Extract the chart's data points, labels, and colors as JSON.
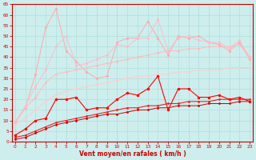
{
  "xlabel": "Vent moyen/en rafales ( km/h )",
  "x": [
    0,
    1,
    2,
    3,
    4,
    5,
    6,
    7,
    8,
    9,
    10,
    11,
    12,
    13,
    14,
    15,
    16,
    17,
    18,
    19,
    20,
    21,
    22,
    23
  ],
  "line_spiky_light": [
    9,
    16,
    32,
    54,
    63,
    43,
    38,
    33,
    30,
    31,
    47,
    49,
    49,
    57,
    49,
    41,
    50,
    49,
    50,
    47,
    46,
    43,
    47,
    39
  ],
  "line_mid_light": [
    9,
    17,
    26,
    34,
    45,
    50,
    36,
    37,
    39,
    41,
    46,
    45,
    49,
    49,
    58,
    43,
    49,
    50,
    48,
    47,
    47,
    44,
    48,
    40
  ],
  "line_diag_light": [
    9,
    16,
    21,
    28,
    32,
    33,
    34,
    35,
    36,
    37,
    38,
    39,
    40,
    41,
    42,
    43,
    43,
    44,
    44,
    45,
    45,
    45,
    46,
    40
  ],
  "line_diag_pale": [
    8,
    11,
    15,
    19,
    22,
    24,
    25,
    26,
    27,
    28,
    29,
    30,
    31,
    31,
    32,
    32,
    33,
    33,
    34,
    34,
    34,
    35,
    35,
    35
  ],
  "line_red_jagged": [
    3,
    6,
    10,
    11,
    20,
    20,
    21,
    15,
    16,
    16,
    20,
    23,
    22,
    25,
    31,
    15,
    25,
    25,
    21,
    21,
    22,
    20,
    21,
    19
  ],
  "line_red_diag1": [
    2,
    3,
    5,
    7,
    9,
    10,
    11,
    12,
    13,
    14,
    15,
    16,
    16,
    17,
    17,
    18,
    18,
    19,
    19,
    19,
    20,
    20,
    20,
    20
  ],
  "line_red_diag2": [
    1,
    2,
    4,
    6,
    8,
    9,
    10,
    11,
    12,
    13,
    13,
    14,
    15,
    15,
    16,
    16,
    17,
    17,
    17,
    18,
    18,
    18,
    19,
    19
  ],
  "color_spiky_light": "#ffaaaa",
  "color_mid_light": "#ffbbcc",
  "color_diag_light": "#ffbbcc",
  "color_diag_pale": "#ffcccc",
  "color_red_jagged": "#ff0000",
  "color_red_diag1": "#dd0000",
  "color_red_diag2": "#cc0000",
  "bg_color": "#cdeeed",
  "grid_color": "#b0dede",
  "axis_color": "#cc0000",
  "ylim": [
    0,
    65
  ],
  "yticks": [
    0,
    5,
    10,
    15,
    20,
    25,
    30,
    35,
    40,
    45,
    50,
    55,
    60,
    65
  ],
  "xticks": [
    0,
    1,
    2,
    3,
    4,
    5,
    6,
    7,
    8,
    9,
    10,
    11,
    12,
    13,
    14,
    15,
    16,
    17,
    18,
    19,
    20,
    21,
    22,
    23
  ]
}
